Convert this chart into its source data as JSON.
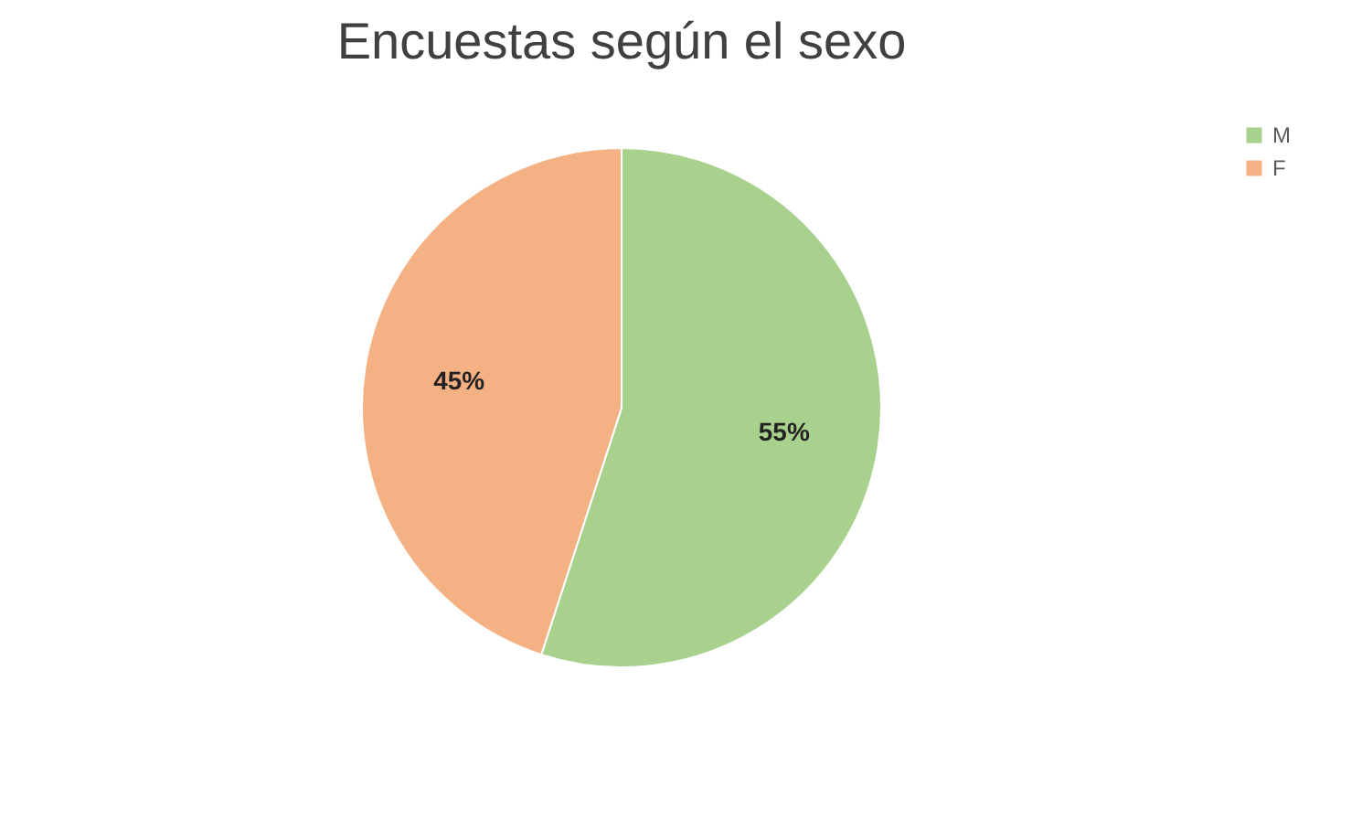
{
  "chart_data": {
    "type": "pie",
    "title": "Encuestas según el sexo",
    "categories": [
      "M",
      "F"
    ],
    "values": [
      55,
      45
    ],
    "colors": [
      "#a9d18e",
      "#f4b183"
    ],
    "value_labels": [
      "55%",
      "45%"
    ],
    "legend": "right"
  }
}
